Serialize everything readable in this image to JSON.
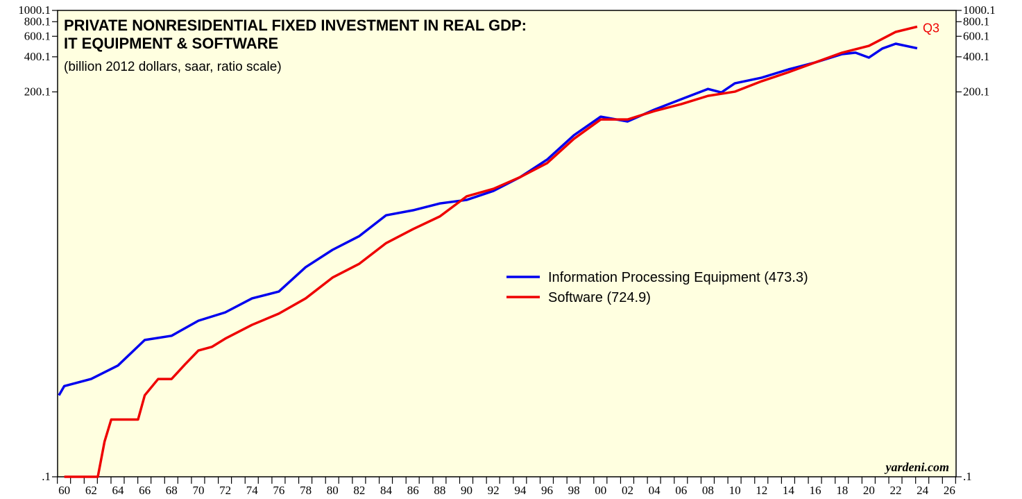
{
  "chart_data": {
    "type": "line",
    "title": "PRIVATE NONRESIDENTIAL FIXED INVESTMENT IN REAL GDP:",
    "title_line2": "IT EQUIPMENT & SOFTWARE",
    "subtitle": "(billion 2012 dollars, saar, ratio scale)",
    "credit": "yardeni.com",
    "annotation": "Q3",
    "log_scale": true,
    "legend_position": "center-right",
    "background": "#ffffe0",
    "xlim": [
      1959.5,
      2026.5
    ],
    "xticks": [
      {
        "value": 1960,
        "label": "60"
      },
      {
        "value": 1962,
        "label": "62"
      },
      {
        "value": 1964,
        "label": "64"
      },
      {
        "value": 1966,
        "label": "66"
      },
      {
        "value": 1968,
        "label": "68"
      },
      {
        "value": 1970,
        "label": "70"
      },
      {
        "value": 1972,
        "label": "72"
      },
      {
        "value": 1974,
        "label": "74"
      },
      {
        "value": 1976,
        "label": "76"
      },
      {
        "value": 1978,
        "label": "78"
      },
      {
        "value": 1980,
        "label": "80"
      },
      {
        "value": 1982,
        "label": "82"
      },
      {
        "value": 1984,
        "label": "84"
      },
      {
        "value": 1986,
        "label": "86"
      },
      {
        "value": 1988,
        "label": "88"
      },
      {
        "value": 1990,
        "label": "90"
      },
      {
        "value": 1992,
        "label": "92"
      },
      {
        "value": 1994,
        "label": "94"
      },
      {
        "value": 1996,
        "label": "96"
      },
      {
        "value": 1998,
        "label": "98"
      },
      {
        "value": 2000,
        "label": "00"
      },
      {
        "value": 2002,
        "label": "02"
      },
      {
        "value": 2004,
        "label": "04"
      },
      {
        "value": 2006,
        "label": "06"
      },
      {
        "value": 2008,
        "label": "08"
      },
      {
        "value": 2010,
        "label": "10"
      },
      {
        "value": 2012,
        "label": "12"
      },
      {
        "value": 2014,
        "label": "14"
      },
      {
        "value": 2016,
        "label": "16"
      },
      {
        "value": 2018,
        "label": "18"
      },
      {
        "value": 2020,
        "label": "20"
      },
      {
        "value": 2022,
        "label": "22"
      },
      {
        "value": 2024,
        "label": "24"
      },
      {
        "value": 2026,
        "label": "26"
      }
    ],
    "ylim": [
      0.1,
      1000.1
    ],
    "yticks": [
      {
        "value": 0.1,
        "label": ".1"
      },
      200.1,
      400.1,
      600.1,
      800.1,
      1000.1
    ],
    "series": [
      {
        "name": "Information Processing Equipment (473.3)",
        "color": "#0000ee",
        "x": [
          1959.6,
          1960,
          1962,
          1964,
          1966,
          1968,
          1970,
          1972,
          1974,
          1976,
          1978,
          1980,
          1982,
          1984,
          1986,
          1988,
          1990,
          1992,
          1994,
          1996,
          1998,
          2000,
          2002,
          2004,
          2006,
          2008,
          2009,
          2010,
          2012,
          2014,
          2016,
          2018,
          2019,
          2020,
          2021,
          2022,
          2023.6
        ],
        "values": [
          0.5,
          0.6,
          0.69,
          0.9,
          1.49,
          1.62,
          2.18,
          2.57,
          3.39,
          3.88,
          6.28,
          8.84,
          11.6,
          17.5,
          19.3,
          22.1,
          23.7,
          28.3,
          37.2,
          52.5,
          84.9,
          122.7,
          111.6,
          140.9,
          173,
          212,
          198,
          237,
          265,
          312,
          358,
          422,
          434,
          394,
          471,
          518,
          473.3
        ]
      },
      {
        "name": "Software (724.9)",
        "color": "#ee0000",
        "x": [
          1960,
          1962.5,
          1963,
          1963.5,
          1965.5,
          1966,
          1967,
          1968,
          1969,
          1970,
          1971,
          1972,
          1974,
          1976,
          1978,
          1980,
          1982,
          1984,
          1986,
          1988,
          1990,
          1992,
          1994,
          1996,
          1998,
          2000,
          2002,
          2004,
          2006,
          2008,
          2010,
          2012,
          2014,
          2016,
          2018,
          2020,
          2022,
          2023.6
        ],
        "values": [
          0.1,
          0.1,
          0.2,
          0.31,
          0.31,
          0.5,
          0.69,
          0.69,
          0.92,
          1.21,
          1.3,
          1.53,
          2.01,
          2.51,
          3.39,
          5.11,
          6.72,
          10.1,
          13.3,
          17.1,
          25.4,
          29.5,
          37.2,
          49,
          79.2,
          116,
          116,
          137,
          157,
          185,
          201,
          247,
          295,
          358,
          434,
          497,
          654,
          724.9
        ]
      }
    ]
  }
}
